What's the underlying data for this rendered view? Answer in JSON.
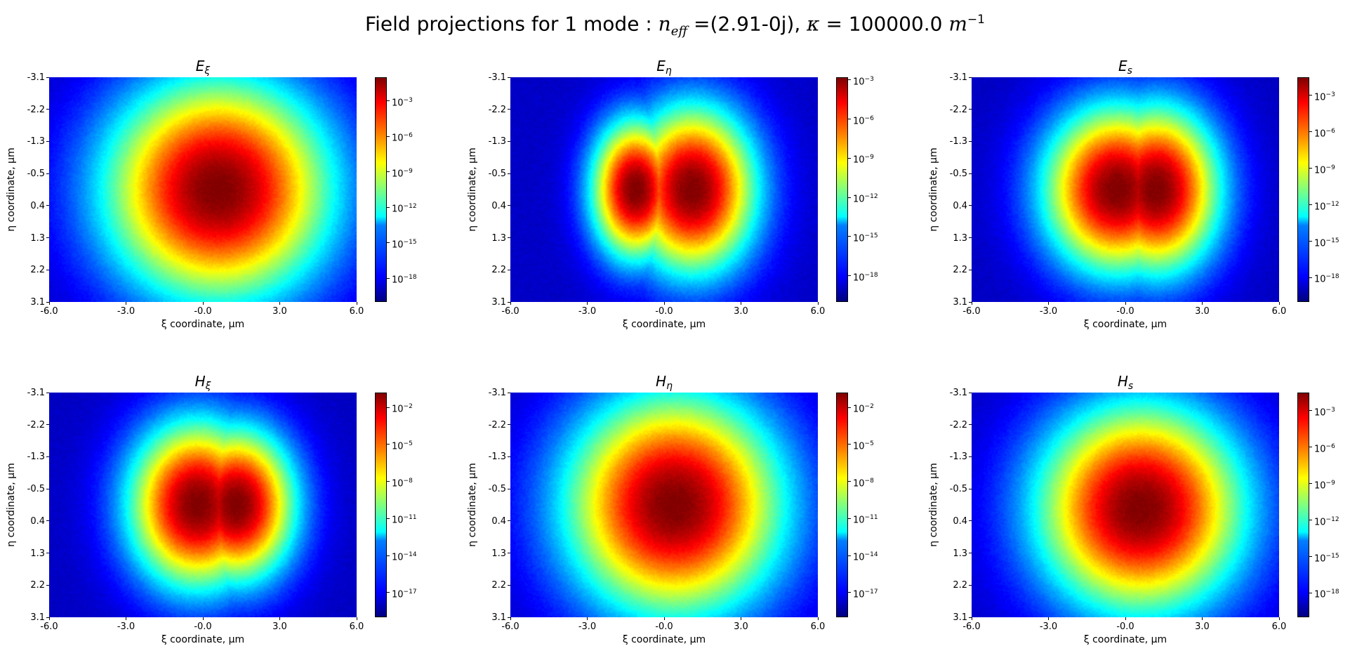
{
  "figure": {
    "title_prefix": "Field projections for 1 mode : ",
    "n_eff_symbol": "n",
    "n_eff_subscript": "eff",
    "n_eff_value": " =(2.91-0j), ",
    "kappa_symbol": "κ",
    "kappa_value": " = 100000.0 ",
    "kappa_unit": "m",
    "kappa_exp": "−1"
  },
  "chart_data": [
    {
      "type": "heatmap",
      "title_main": "E",
      "title_sub": "ξ",
      "xlabel": "ξ coordinate, μm",
      "ylabel": "η coordinate, μm",
      "xticks": [
        "-6.0",
        "-3.0",
        "-0.0",
        "3.0",
        "6.0"
      ],
      "yticks": [
        "-3.1",
        "-2.2",
        "-1.3",
        "-0.5",
        "0.4",
        "1.3",
        "2.2",
        "3.1"
      ],
      "xlim": [
        -6.0,
        6.0
      ],
      "ylim": [
        -3.1,
        3.1
      ],
      "colorbar_ticks": [
        {
          "base": "10",
          "exp": "−3",
          "log": -3
        },
        {
          "base": "10",
          "exp": "−6",
          "log": -6
        },
        {
          "base": "10",
          "exp": "−9",
          "log": -9
        },
        {
          "base": "10",
          "exp": "−12",
          "log": -12
        },
        {
          "base": "10",
          "exp": "−15",
          "log": -15
        },
        {
          "base": "10",
          "exp": "−18",
          "log": -18
        }
      ],
      "clim_log": [
        -20,
        -1
      ],
      "colormap": "jet",
      "lobes": [
        {
          "x": 0.6,
          "y": 0.0,
          "rx": 2.3,
          "ry": 1.6
        }
      ]
    },
    {
      "type": "heatmap",
      "title_main": "E",
      "title_sub": "η",
      "xlabel": "ξ coordinate, μm",
      "ylabel": "η coordinate, μm",
      "xticks": [
        "-6.0",
        "-3.0",
        "-0.0",
        "3.0",
        "6.0"
      ],
      "yticks": [
        "-3.1",
        "-2.2",
        "-1.3",
        "-0.5",
        "0.4",
        "1.3",
        "2.2",
        "3.1"
      ],
      "xlim": [
        -6.0,
        6.0
      ],
      "ylim": [
        -3.1,
        3.1
      ],
      "colorbar_ticks": [
        {
          "base": "10",
          "exp": "−3",
          "log": -3
        },
        {
          "base": "10",
          "exp": "−6",
          "log": -6
        },
        {
          "base": "10",
          "exp": "−9",
          "log": -9
        },
        {
          "base": "10",
          "exp": "−12",
          "log": -12
        },
        {
          "base": "10",
          "exp": "−15",
          "log": -15
        },
        {
          "base": "10",
          "exp": "−18",
          "log": -18
        }
      ],
      "clim_log": [
        -20,
        -2.8
      ],
      "colormap": "jet",
      "lobes": [
        {
          "x": -1.1,
          "y": 0.0,
          "rx": 0.9,
          "ry": 1.0
        },
        {
          "x": 1.1,
          "y": 0.0,
          "rx": 1.3,
          "ry": 1.2
        }
      ]
    },
    {
      "type": "heatmap",
      "title_main": "E",
      "title_sub": "s",
      "xlabel": "ξ coordinate, μm",
      "ylabel": "η coordinate, μm",
      "xticks": [
        "-6.0",
        "-3.0",
        "-0.0",
        "3.0",
        "6.0"
      ],
      "yticks": [
        "-3.1",
        "-2.2",
        "-1.3",
        "-0.5",
        "0.4",
        "1.3",
        "2.2",
        "3.1"
      ],
      "xlim": [
        -6.0,
        6.0
      ],
      "ylim": [
        -3.1,
        3.1
      ],
      "colorbar_ticks": [
        {
          "base": "10",
          "exp": "−3",
          "log": -3
        },
        {
          "base": "10",
          "exp": "−6",
          "log": -6
        },
        {
          "base": "10",
          "exp": "−9",
          "log": -9
        },
        {
          "base": "10",
          "exp": "−12",
          "log": -12
        },
        {
          "base": "10",
          "exp": "−15",
          "log": -15
        },
        {
          "base": "10",
          "exp": "−18",
          "log": -18
        }
      ],
      "clim_log": [
        -20,
        -1.5
      ],
      "colormap": "jet",
      "lobes": [
        {
          "x": -0.3,
          "y": 0.0,
          "rx": 1.5,
          "ry": 1.2
        },
        {
          "x": 1.2,
          "y": 0.0,
          "rx": 1.3,
          "ry": 1.2
        }
      ]
    },
    {
      "type": "heatmap",
      "title_main": "H",
      "title_sub": "ξ",
      "xlabel": "ξ coordinate, μm",
      "ylabel": "η coordinate, μm",
      "xticks": [
        "-6.0",
        "-3.0",
        "-0.0",
        "3.0",
        "6.0"
      ],
      "yticks": [
        "-3.1",
        "-2.2",
        "-1.3",
        "-0.5",
        "0.4",
        "1.3",
        "2.2",
        "3.1"
      ],
      "xlim": [
        -6.0,
        6.0
      ],
      "ylim": [
        -3.1,
        3.1
      ],
      "colorbar_ticks": [
        {
          "base": "10",
          "exp": "−2",
          "log": -2
        },
        {
          "base": "10",
          "exp": "−5",
          "log": -5
        },
        {
          "base": "10",
          "exp": "−8",
          "log": -8
        },
        {
          "base": "10",
          "exp": "−11",
          "log": -11
        },
        {
          "base": "10",
          "exp": "−14",
          "log": -14
        },
        {
          "base": "10",
          "exp": "−17",
          "log": -17
        }
      ],
      "clim_log": [
        -19,
        -0.8
      ],
      "colormap": "jet",
      "lobes": [
        {
          "x": -0.2,
          "y": 0.0,
          "rx": 1.4,
          "ry": 1.2
        },
        {
          "x": 1.3,
          "y": 0.0,
          "rx": 1.2,
          "ry": 1.1
        }
      ]
    },
    {
      "type": "heatmap",
      "title_main": "H",
      "title_sub": "η",
      "xlabel": "ξ coordinate, μm",
      "ylabel": "η coordinate, μm",
      "xticks": [
        "-6.0",
        "-3.0",
        "-0.0",
        "3.0",
        "6.0"
      ],
      "yticks": [
        "-3.1",
        "-2.2",
        "-1.3",
        "-0.5",
        "0.4",
        "1.3",
        "2.2",
        "3.1"
      ],
      "xlim": [
        -6.0,
        6.0
      ],
      "ylim": [
        -3.1,
        3.1
      ],
      "colorbar_ticks": [
        {
          "base": "10",
          "exp": "−2",
          "log": -2
        },
        {
          "base": "10",
          "exp": "−5",
          "log": -5
        },
        {
          "base": "10",
          "exp": "−8",
          "log": -8
        },
        {
          "base": "10",
          "exp": "−11",
          "log": -11
        },
        {
          "base": "10",
          "exp": "−14",
          "log": -14
        },
        {
          "base": "10",
          "exp": "−17",
          "log": -17
        }
      ],
      "clim_log": [
        -19,
        -0.8
      ],
      "colormap": "jet",
      "lobes": [
        {
          "x": 0.4,
          "y": 0.0,
          "rx": 2.2,
          "ry": 1.6
        }
      ]
    },
    {
      "type": "heatmap",
      "title_main": "H",
      "title_sub": "s",
      "xlabel": "ξ coordinate, μm",
      "ylabel": "η coordinate, μm",
      "xticks": [
        "-6.0",
        "-3.0",
        "-0.0",
        "3.0",
        "6.0"
      ],
      "yticks": [
        "-3.1",
        "-2.2",
        "-1.3",
        "-0.5",
        "0.4",
        "1.3",
        "2.2",
        "3.1"
      ],
      "xlim": [
        -6.0,
        6.0
      ],
      "ylim": [
        -3.1,
        3.1
      ],
      "colorbar_ticks": [
        {
          "base": "10",
          "exp": "−3",
          "log": -3
        },
        {
          "base": "10",
          "exp": "−6",
          "log": -6
        },
        {
          "base": "10",
          "exp": "−9",
          "log": -9
        },
        {
          "base": "10",
          "exp": "−12",
          "log": -12
        },
        {
          "base": "10",
          "exp": "−15",
          "log": -15
        },
        {
          "base": "10",
          "exp": "−18",
          "log": -18
        }
      ],
      "clim_log": [
        -20,
        -1.5
      ],
      "colormap": "jet",
      "lobes": [
        {
          "x": 0.6,
          "y": 0.1,
          "rx": 2.1,
          "ry": 1.5
        }
      ]
    }
  ]
}
